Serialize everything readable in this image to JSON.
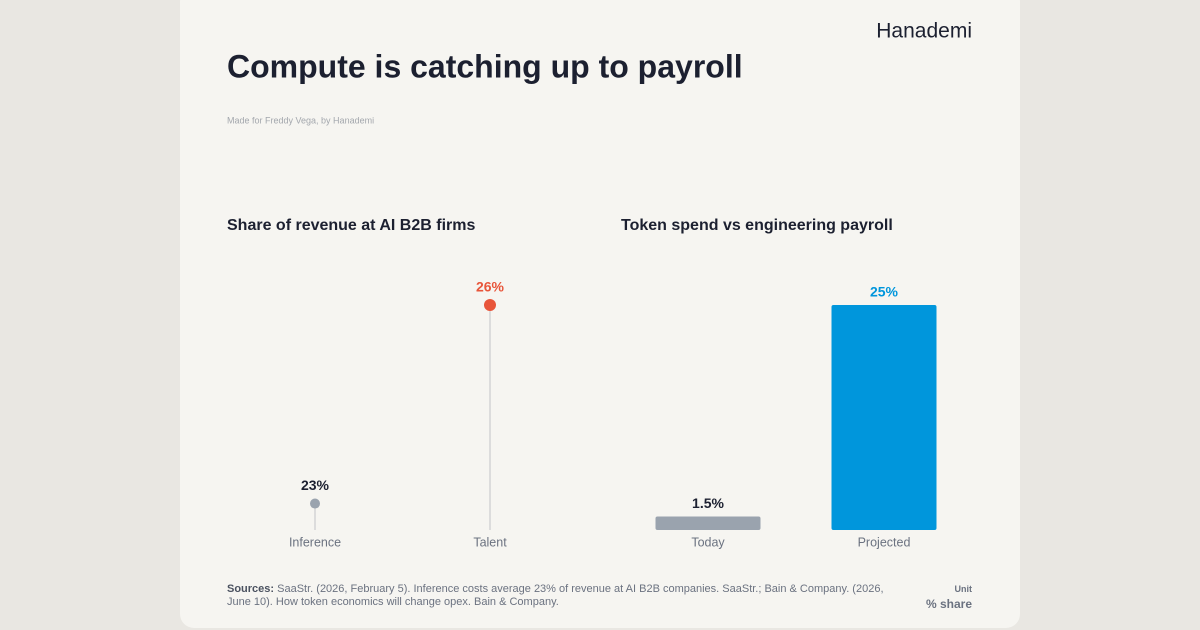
{
  "brand": "Hanademi",
  "title": "Compute is catching up to payroll",
  "subtitle": "Made for Freddy Vega, by Hanademi",
  "chart_data": [
    {
      "type": "lollipop",
      "title": "Share of revenue at AI B2B firms",
      "categories": [
        "Inference",
        "Talent"
      ],
      "values": [
        23,
        26
      ],
      "value_labels": [
        "23%",
        "26%"
      ],
      "colors": [
        "#9aa3ae",
        "#e8553a"
      ],
      "ylim": [
        22.6,
        26
      ]
    },
    {
      "type": "bar",
      "title": "Token spend vs engineering payroll",
      "categories": [
        "Today",
        "Projected"
      ],
      "values": [
        1.5,
        25
      ],
      "value_labels": [
        "1.5%",
        "25%"
      ],
      "colors": [
        "#9aa3ae",
        "#0096dc"
      ],
      "ylim": [
        0,
        25
      ]
    }
  ],
  "sources": {
    "label": "Sources:",
    "text": "SaaStr. (2026, February 5). Inference costs average 23% of revenue at AI B2B companies. SaaStr.; Bain & Company. (2026, June 10). How token economics will change opex. Bain & Company."
  },
  "unit": {
    "label": "Unit",
    "value": "% share"
  }
}
